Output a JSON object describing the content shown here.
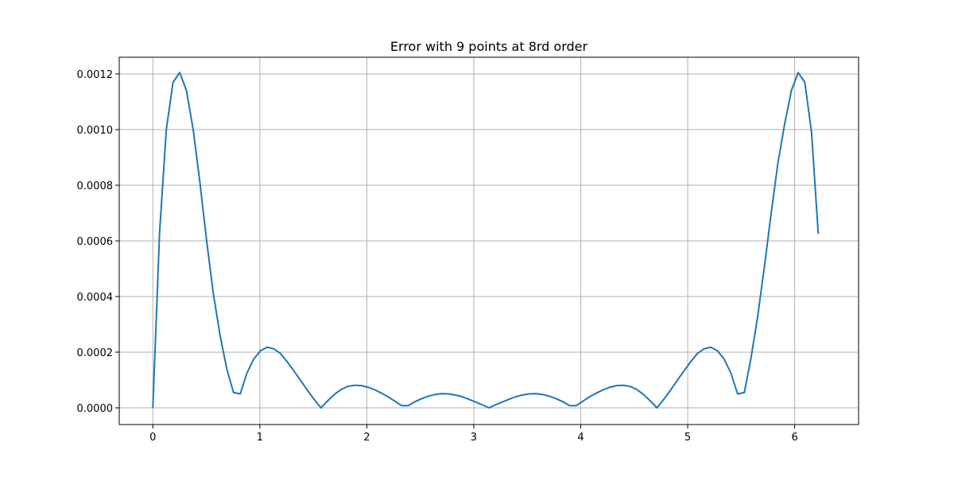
{
  "chart_data": {
    "type": "line",
    "title": "Error with 9 points at 8rd order",
    "xlabel": "",
    "ylabel": "",
    "xlim": [
      -0.3142,
      6.5974
    ],
    "ylim": [
      -6e-05,
      0.00126
    ],
    "xticks": [
      0,
      1,
      2,
      3,
      4,
      5,
      6
    ],
    "xtick_labels": [
      "0",
      "1",
      "2",
      "3",
      "4",
      "5",
      "6"
    ],
    "yticks": [
      0.0,
      0.0002,
      0.0004,
      0.0006,
      0.0008,
      0.001,
      0.0012
    ],
    "ytick_labels": [
      "0.0000",
      "0.0002",
      "0.0004",
      "0.0006",
      "0.0008",
      "0.0010",
      "0.0012"
    ],
    "grid": true,
    "series_color": "#1f77b4",
    "series": [
      {
        "x": [
          0.0,
          0.0628,
          0.1257,
          0.1885,
          0.2513,
          0.3142,
          0.377,
          0.4398,
          0.5027,
          0.5655,
          0.6283,
          0.6912,
          0.754,
          0.8168,
          0.8796,
          0.9425,
          1.0053,
          1.0681,
          1.131,
          1.1938,
          1.2566,
          1.3195,
          1.3823,
          1.4451,
          1.508,
          1.5708,
          1.6336,
          1.6965,
          1.7593,
          1.8221,
          1.885,
          1.9478,
          2.0106,
          2.0735,
          2.1363,
          2.1991,
          2.2619,
          2.3248,
          2.3876,
          2.4504,
          2.5133,
          2.5761,
          2.6389,
          2.7018,
          2.7646,
          2.8274,
          2.8903,
          2.9531,
          3.0159,
          3.0788,
          3.1416,
          3.2044,
          3.2673,
          3.3301,
          3.3929,
          3.4558,
          3.5186,
          3.5814,
          3.6442,
          3.7071,
          3.7699,
          3.8327,
          3.8956,
          3.9584,
          4.0212,
          4.0841,
          4.1469,
          4.2097,
          4.2726,
          4.3354,
          4.3982,
          4.4611,
          4.5239,
          4.5867,
          4.6496,
          4.7124,
          4.7752,
          4.8381,
          4.9009,
          4.9637,
          5.0265,
          5.0894,
          5.1522,
          5.215,
          5.2779,
          5.3407,
          5.4035,
          5.4664,
          5.5292,
          5.592,
          5.6549,
          5.7177,
          5.7805,
          5.8434,
          5.9062,
          5.969,
          6.0319,
          6.0947,
          6.1575,
          6.2204
        ],
        "values": [
          0.0,
          0.00063,
          0.001,
          0.00117,
          0.001205,
          0.00114,
          0.001,
          0.00081,
          0.0006,
          0.00041,
          0.00026,
          0.00014,
          5.5e-05,
          5e-05,
          0.000125,
          0.000175,
          0.000205,
          0.000218,
          0.000212,
          0.000195,
          0.000165,
          0.000132,
          9.8e-05,
          6.3e-05,
          3e-05,
          0.0,
          2.5e-05,
          4.8e-05,
          6.6e-05,
          7.7e-05,
          8.1e-05,
          8e-05,
          7.4e-05,
          6.5e-05,
          5.3e-05,
          4e-05,
          2.4e-05,
          8e-06,
          8e-06,
          2.2e-05,
          3.3e-05,
          4.2e-05,
          4.8e-05,
          5.1e-05,
          5e-05,
          4.6e-05,
          4e-05,
          3.1e-05,
          2.1e-05,
          1.1e-05,
          0.0,
          1.1e-05,
          2.1e-05,
          3.1e-05,
          4e-05,
          4.6e-05,
          5e-05,
          5.1e-05,
          4.8e-05,
          4.2e-05,
          3.3e-05,
          2.2e-05,
          8e-06,
          8e-06,
          2.4e-05,
          4e-05,
          5.3e-05,
          6.5e-05,
          7.4e-05,
          8e-05,
          8.1e-05,
          7.7e-05,
          6.6e-05,
          4.8e-05,
          2.5e-05,
          0.0,
          3e-05,
          6.3e-05,
          9.8e-05,
          0.000132,
          0.000165,
          0.000195,
          0.000212,
          0.000218,
          0.000205,
          0.000175,
          0.000125,
          5e-05,
          5.5e-05,
          0.00018,
          0.00033,
          0.00051,
          0.0007,
          0.00088,
          0.00102,
          0.00114,
          0.001205,
          0.00117,
          0.00099,
          0.000625
        ]
      }
    ]
  }
}
